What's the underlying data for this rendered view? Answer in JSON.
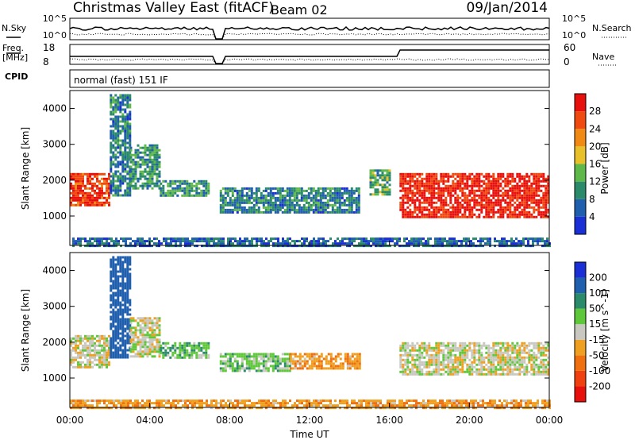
{
  "header": {
    "title": "Christmas Valley East (fitACF)",
    "beam": "Beam 02",
    "date": "09/Jan/2014"
  },
  "top_panels": {
    "nsky_label": "N.Sky",
    "nsky_ticks": [
      "10^5",
      "10^0"
    ],
    "nsearch_label": "N.Search",
    "nsearch_ticks": [
      "10^5",
      "10^0"
    ],
    "freq_label": "Freq.",
    "freq_unit": "[MHz]",
    "freq_ticks": [
      "18",
      "8"
    ],
    "nave_label": "Nave",
    "nave_ticks": [
      "60",
      "0"
    ],
    "cpid_label": "CPID",
    "cpid_value": "normal (fast) 151 IF"
  },
  "colors": {
    "power_scale": [
      "#1a2fd6",
      "#1f5fae",
      "#2a8a6a",
      "#5fb84a",
      "#e8c12a",
      "#f08a14",
      "#f04a10",
      "#e8100c"
    ],
    "velocity_scale": [
      "#1a2fd6",
      "#1f5fae",
      "#2a8a6a",
      "#5fc83a",
      "#c8c8c0",
      "#f0a020",
      "#f07010",
      "#f04010",
      "#e8100c"
    ]
  },
  "chart_data": [
    {
      "type": "heatmap",
      "title": "",
      "xlabel": "",
      "ylabel": "Slant Range [km]",
      "xlim": [
        "00:00",
        "24:00"
      ],
      "ylim": [
        180,
        4500
      ],
      "ytick_labels": [
        "1000",
        "2000",
        "3000",
        "4000"
      ],
      "colorbar": {
        "label": "Power [dB]",
        "ticks": [
          "4",
          "8",
          "12",
          "16",
          "20",
          "24",
          "28"
        ],
        "range": [
          0,
          30
        ]
      },
      "regions": [
        {
          "t_start": "00:00",
          "t_end": "02:00",
          "range_start": 1300,
          "range_end": 2200,
          "value": 26
        },
        {
          "t_start": "02:00",
          "t_end": "03:00",
          "range_start": 1600,
          "range_end": 4400,
          "value": 8
        },
        {
          "t_start": "03:00",
          "t_end": "04:30",
          "range_start": 1800,
          "range_end": 3000,
          "value": 10
        },
        {
          "t_start": "04:30",
          "t_end": "07:00",
          "range_start": 1600,
          "range_end": 2000,
          "value": 10
        },
        {
          "t_start": "07:30",
          "t_end": "14:30",
          "range_start": 1100,
          "range_end": 1800,
          "value": 8
        },
        {
          "t_start": "15:00",
          "t_end": "16:00",
          "range_start": 1600,
          "range_end": 2300,
          "value": 12
        },
        {
          "t_start": "16:30",
          "t_end": "24:00",
          "range_start": 1000,
          "range_end": 2200,
          "value": 28
        },
        {
          "t_start": "00:00",
          "t_end": "24:00",
          "range_start": 200,
          "range_end": 400,
          "value": 6
        }
      ]
    },
    {
      "type": "heatmap",
      "title": "",
      "xlabel": "Time UT",
      "ylabel": "Slant Range [km]",
      "xlim": [
        "00:00",
        "24:00"
      ],
      "xtick_labels": [
        "00:00",
        "04:00",
        "08:00",
        "12:00",
        "16:00",
        "20:00",
        "00:00"
      ],
      "ylim": [
        180,
        4500
      ],
      "ytick_labels": [
        "1000",
        "2000",
        "3000",
        "4000"
      ],
      "colorbar": {
        "label": "Velocity [m s^-1]",
        "ticks": [
          "200",
          "100",
          "50",
          "15",
          "-15",
          "-50",
          "-100",
          "-200"
        ],
        "range": [
          -250,
          250
        ]
      },
      "regions": [
        {
          "t_start": "00:00",
          "t_end": "02:00",
          "range_start": 1300,
          "range_end": 2200,
          "value": 0
        },
        {
          "t_start": "02:00",
          "t_end": "03:00",
          "range_start": 1600,
          "range_end": 4400,
          "value": 150
        },
        {
          "t_start": "03:00",
          "t_end": "04:30",
          "range_start": 1600,
          "range_end": 2700,
          "value": 0
        },
        {
          "t_start": "04:30",
          "t_end": "07:00",
          "range_start": 1600,
          "range_end": 2000,
          "value": 40
        },
        {
          "t_start": "07:30",
          "t_end": "11:00",
          "range_start": 1200,
          "range_end": 1700,
          "value": 30
        },
        {
          "t_start": "11:00",
          "t_end": "14:30",
          "range_start": 1300,
          "range_end": 1700,
          "value": -40
        },
        {
          "t_start": "16:30",
          "t_end": "24:00",
          "range_start": 1100,
          "range_end": 2000,
          "value": 0
        },
        {
          "t_start": "00:00",
          "t_end": "24:00",
          "range_start": 200,
          "range_end": 400,
          "value": -40
        }
      ]
    }
  ]
}
